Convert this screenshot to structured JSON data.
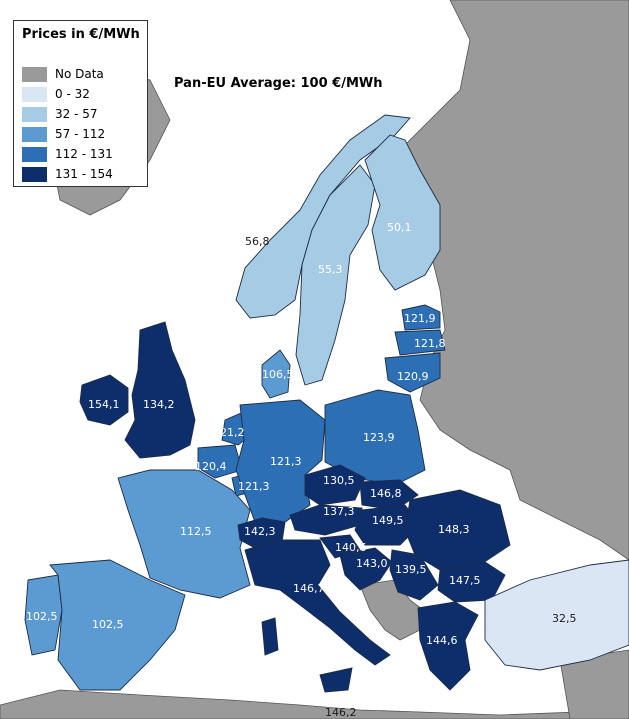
{
  "legend": {
    "title": "Prices in €/MWh",
    "items": [
      {
        "label": "No Data",
        "color": "#9a9a9a"
      },
      {
        "label": "0 - 32",
        "color": "#dbe6f5"
      },
      {
        "label": "32 - 57",
        "color": "#a6cbe4"
      },
      {
        "label": "57 - 112",
        "color": "#5b9bd1"
      },
      {
        "label": "112 - 131",
        "color": "#2c6fb5"
      },
      {
        "label": "131 - 154",
        "color": "#0d2e6b"
      }
    ]
  },
  "average_note": "Pan-EU Average: 100 €/MWh",
  "country_labels": [
    {
      "key": "ireland",
      "text": "154,1"
    },
    {
      "key": "uk",
      "text": "134,2"
    },
    {
      "key": "portugal",
      "text": "102,5"
    },
    {
      "key": "spain",
      "text": "102,5"
    },
    {
      "key": "france",
      "text": "112,5"
    },
    {
      "key": "belgium",
      "text": "120,4"
    },
    {
      "key": "netherlands",
      "text": "121,2"
    },
    {
      "key": "luxembourg",
      "text": "121,3"
    },
    {
      "key": "germany",
      "text": "121,3"
    },
    {
      "key": "denmark",
      "text": "106,5"
    },
    {
      "key": "norway",
      "text": "56,8"
    },
    {
      "key": "sweden",
      "text": "55,3"
    },
    {
      "key": "finland",
      "text": "50,1"
    },
    {
      "key": "estonia",
      "text": "121,9"
    },
    {
      "key": "latvia",
      "text": "121,8"
    },
    {
      "key": "lithuania",
      "text": "120,9"
    },
    {
      "key": "poland",
      "text": "123,9"
    },
    {
      "key": "czechia",
      "text": "130,5"
    },
    {
      "key": "slovakia",
      "text": "146,8"
    },
    {
      "key": "austria",
      "text": "137,3"
    },
    {
      "key": "hungary",
      "text": "149,5"
    },
    {
      "key": "switzerland",
      "text": "142,3"
    },
    {
      "key": "romania",
      "text": "148,3"
    },
    {
      "key": "slovenia",
      "text": "140,6"
    },
    {
      "key": "croatia",
      "text": "143,0"
    },
    {
      "key": "serbia",
      "text": "139,5"
    },
    {
      "key": "bulgaria",
      "text": "147,5"
    },
    {
      "key": "italy",
      "text": "146,7"
    },
    {
      "key": "greece",
      "text": "144,6"
    },
    {
      "key": "turkey",
      "text": "32,5"
    },
    {
      "key": "malta",
      "text": "146,2"
    }
  ]
}
